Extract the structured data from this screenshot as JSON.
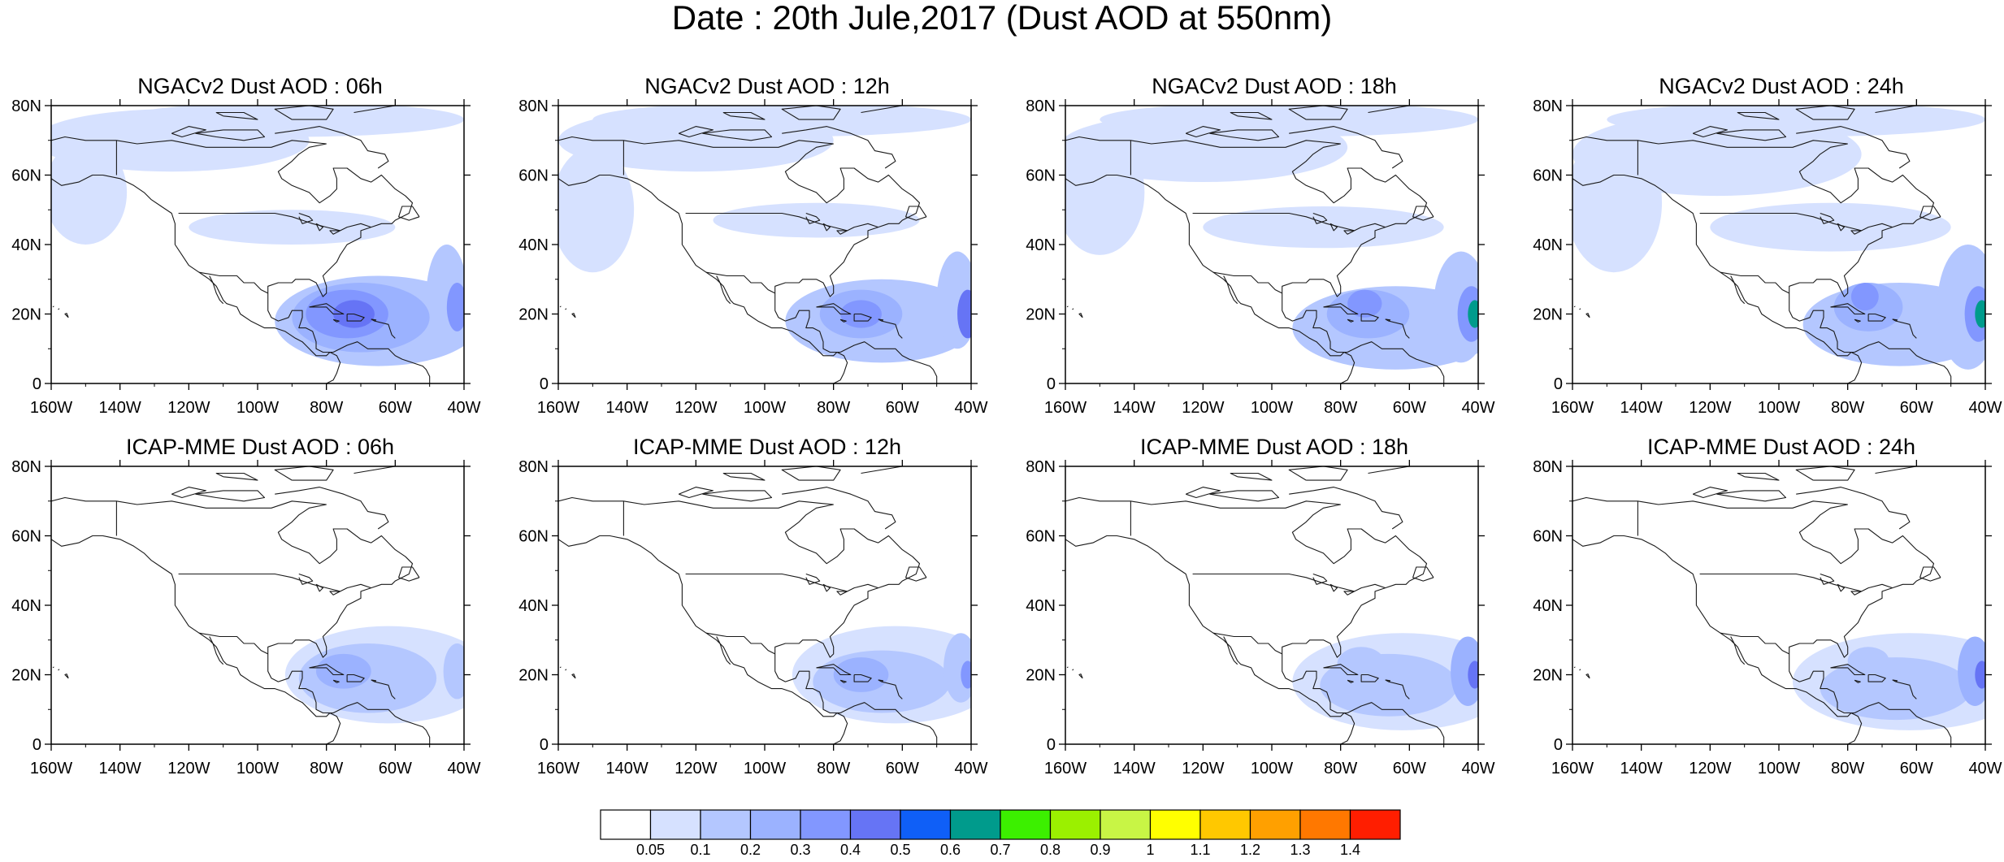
{
  "title": "Date : 20th Jule,2017 (Dust AOD at 550nm)",
  "lat_ticks": [
    "80N",
    "60N",
    "40N",
    "20N",
    "0"
  ],
  "lon_ticks": [
    "160W",
    "140W",
    "120W",
    "100W",
    "80W",
    "60W",
    "40W"
  ],
  "map_extent": {
    "lon": [
      -160,
      -40
    ],
    "lat": [
      0,
      80
    ]
  },
  "panels": [
    {
      "title": "NGACv2 Dust AOD : 06h",
      "model": "NGACv2",
      "lead": "06h",
      "max_aod": 0.5,
      "plumes": [
        {
          "lon": -72,
          "lat": 20,
          "rlon": 6,
          "rlat": 4,
          "level": 5
        },
        {
          "lon": -74,
          "lat": 20,
          "rlon": 12,
          "rlat": 7,
          "level": 4
        },
        {
          "lon": -70,
          "lat": 19,
          "rlon": 20,
          "rlat": 10,
          "level": 3
        },
        {
          "lon": -65,
          "lat": 18,
          "rlon": 30,
          "rlat": 13,
          "level": 2
        },
        {
          "lon": -42,
          "lat": 22,
          "rlon": 3,
          "rlat": 7,
          "level": 4
        },
        {
          "lon": -45,
          "lat": 25,
          "rlon": 6,
          "rlat": 15,
          "level": 2
        },
        {
          "lon": -125,
          "lat": 70,
          "rlon": 40,
          "rlat": 9,
          "level": 1
        },
        {
          "lon": -150,
          "lat": 55,
          "rlon": 12,
          "rlat": 15,
          "level": 1
        },
        {
          "lon": -90,
          "lat": 76,
          "rlon": 50,
          "rlat": 5,
          "level": 1
        },
        {
          "lon": -90,
          "lat": 45,
          "rlon": 30,
          "rlat": 5,
          "level": 1
        }
      ]
    },
    {
      "title": "NGACv2 Dust AOD : 12h",
      "model": "NGACv2",
      "lead": "12h",
      "max_aod": 0.5,
      "plumes": [
        {
          "lon": -72,
          "lat": 20,
          "rlon": 6,
          "rlat": 4,
          "level": 4
        },
        {
          "lon": -72,
          "lat": 20,
          "rlon": 12,
          "rlat": 7,
          "level": 3
        },
        {
          "lon": -66,
          "lat": 18,
          "rlon": 28,
          "rlat": 12,
          "level": 2
        },
        {
          "lon": -41,
          "lat": 20,
          "rlon": 3,
          "rlat": 7,
          "level": 5
        },
        {
          "lon": -44,
          "lat": 24,
          "rlon": 6,
          "rlat": 14,
          "level": 2
        },
        {
          "lon": -120,
          "lat": 70,
          "rlon": 40,
          "rlat": 9,
          "level": 1
        },
        {
          "lon": -150,
          "lat": 50,
          "rlon": 12,
          "rlat": 18,
          "level": 1
        },
        {
          "lon": -95,
          "lat": 76,
          "rlon": 55,
          "rlat": 5,
          "level": 1
        },
        {
          "lon": -85,
          "lat": 47,
          "rlon": 30,
          "rlat": 5,
          "level": 1
        }
      ]
    },
    {
      "title": "NGACv2 Dust AOD : 18h",
      "model": "NGACv2",
      "lead": "18h",
      "max_aod": 0.7,
      "plumes": [
        {
          "lon": -73,
          "lat": 23,
          "rlon": 5,
          "rlat": 4,
          "level": 4
        },
        {
          "lon": -72,
          "lat": 20,
          "rlon": 12,
          "rlat": 7,
          "level": 3
        },
        {
          "lon": -64,
          "lat": 16,
          "rlon": 30,
          "rlat": 12,
          "level": 2
        },
        {
          "lon": -41,
          "lat": 20,
          "rlon": 2,
          "rlat": 4,
          "level": 7
        },
        {
          "lon": -42,
          "lat": 20,
          "rlon": 4,
          "rlat": 8,
          "level": 4
        },
        {
          "lon": -45,
          "lat": 22,
          "rlon": 8,
          "rlat": 16,
          "level": 2
        },
        {
          "lon": -120,
          "lat": 68,
          "rlon": 42,
          "rlat": 10,
          "level": 1
        },
        {
          "lon": -150,
          "lat": 55,
          "rlon": 13,
          "rlat": 18,
          "level": 1
        },
        {
          "lon": -95,
          "lat": 76,
          "rlon": 55,
          "rlat": 5,
          "level": 1
        },
        {
          "lon": -85,
          "lat": 45,
          "rlon": 35,
          "rlat": 6,
          "level": 1
        }
      ]
    },
    {
      "title": "NGACv2 Dust AOD : 24h",
      "model": "NGACv2",
      "lead": "24h",
      "max_aod": 0.7,
      "plumes": [
        {
          "lon": -75,
          "lat": 25,
          "rlon": 4,
          "rlat": 4,
          "level": 4
        },
        {
          "lon": -74,
          "lat": 22,
          "rlon": 10,
          "rlat": 7,
          "level": 3
        },
        {
          "lon": -65,
          "lat": 17,
          "rlon": 28,
          "rlat": 12,
          "level": 2
        },
        {
          "lon": -41,
          "lat": 20,
          "rlon": 2,
          "rlat": 4,
          "level": 7
        },
        {
          "lon": -42,
          "lat": 20,
          "rlon": 4,
          "rlat": 8,
          "level": 4
        },
        {
          "lon": -45,
          "lat": 22,
          "rlon": 9,
          "rlat": 18,
          "level": 2
        },
        {
          "lon": -118,
          "lat": 66,
          "rlon": 42,
          "rlat": 12,
          "level": 1
        },
        {
          "lon": -148,
          "lat": 52,
          "rlon": 14,
          "rlat": 20,
          "level": 1
        },
        {
          "lon": -95,
          "lat": 76,
          "rlon": 55,
          "rlat": 5,
          "level": 1
        },
        {
          "lon": -85,
          "lat": 45,
          "rlon": 35,
          "rlat": 7,
          "level": 1
        }
      ]
    },
    {
      "title": "ICAP-MME Dust AOD : 06h",
      "model": "ICAP-MME",
      "lead": "06h",
      "max_aod": 0.4,
      "plumes": [
        {
          "lon": -75,
          "lat": 21,
          "rlon": 8,
          "rlat": 5,
          "level": 3
        },
        {
          "lon": -68,
          "lat": 19,
          "rlon": 20,
          "rlat": 10,
          "level": 2
        },
        {
          "lon": -62,
          "lat": 20,
          "rlon": 30,
          "rlat": 14,
          "level": 1
        },
        {
          "lon": -42,
          "lat": 21,
          "rlon": 4,
          "rlat": 8,
          "level": 2
        }
      ]
    },
    {
      "title": "ICAP-MME Dust AOD : 12h",
      "model": "ICAP-MME",
      "lead": "12h",
      "max_aod": 0.5,
      "plumes": [
        {
          "lon": -72,
          "lat": 20,
          "rlon": 8,
          "rlat": 5,
          "level": 3
        },
        {
          "lon": -66,
          "lat": 18,
          "rlon": 20,
          "rlat": 9,
          "level": 2
        },
        {
          "lon": -62,
          "lat": 20,
          "rlon": 30,
          "rlat": 14,
          "level": 1
        },
        {
          "lon": -41,
          "lat": 20,
          "rlon": 2,
          "rlat": 4,
          "level": 4
        },
        {
          "lon": -43,
          "lat": 22,
          "rlon": 5,
          "rlat": 10,
          "level": 2
        }
      ]
    },
    {
      "title": "ICAP-MME Dust AOD : 18h",
      "model": "ICAP-MME",
      "lead": "18h",
      "max_aod": 0.5,
      "plumes": [
        {
          "lon": -74,
          "lat": 23,
          "rlon": 7,
          "rlat": 5,
          "level": 2
        },
        {
          "lon": -66,
          "lat": 17,
          "rlon": 20,
          "rlat": 9,
          "level": 2
        },
        {
          "lon": -62,
          "lat": 18,
          "rlon": 32,
          "rlat": 14,
          "level": 1
        },
        {
          "lon": -41,
          "lat": 20,
          "rlon": 2,
          "rlat": 4,
          "level": 5
        },
        {
          "lon": -43,
          "lat": 21,
          "rlon": 5,
          "rlat": 10,
          "level": 3
        }
      ]
    },
    {
      "title": "ICAP-MME Dust AOD : 24h",
      "model": "ICAP-MME",
      "lead": "24h",
      "max_aod": 0.5,
      "plumes": [
        {
          "lon": -74,
          "lat": 24,
          "rlon": 6,
          "rlat": 4,
          "level": 2
        },
        {
          "lon": -66,
          "lat": 16,
          "rlon": 22,
          "rlat": 9,
          "level": 2
        },
        {
          "lon": -62,
          "lat": 18,
          "rlon": 34,
          "rlat": 14,
          "level": 1
        },
        {
          "lon": -41,
          "lat": 20,
          "rlon": 2,
          "rlat": 4,
          "level": 5
        },
        {
          "lon": -43,
          "lat": 21,
          "rlon": 5,
          "rlat": 10,
          "level": 3
        }
      ]
    }
  ],
  "colorbar": {
    "labels": [
      "0.05",
      "0.1",
      "0.2",
      "0.3",
      "0.4",
      "0.5",
      "0.6",
      "0.7",
      "0.8",
      "0.9",
      "1",
      "1.1",
      "1.2",
      "1.3",
      "1.4"
    ],
    "colors": [
      "#ffffff",
      "#d6e1ff",
      "#b4c7ff",
      "#9bb2ff",
      "#8297ff",
      "#6674f5",
      "#0f5ff7",
      "#009b8c",
      "#3cf000",
      "#9bf000",
      "#c8f545",
      "#ffff00",
      "#ffc800",
      "#ffa000",
      "#ff7800",
      "#ff1e00"
    ]
  }
}
